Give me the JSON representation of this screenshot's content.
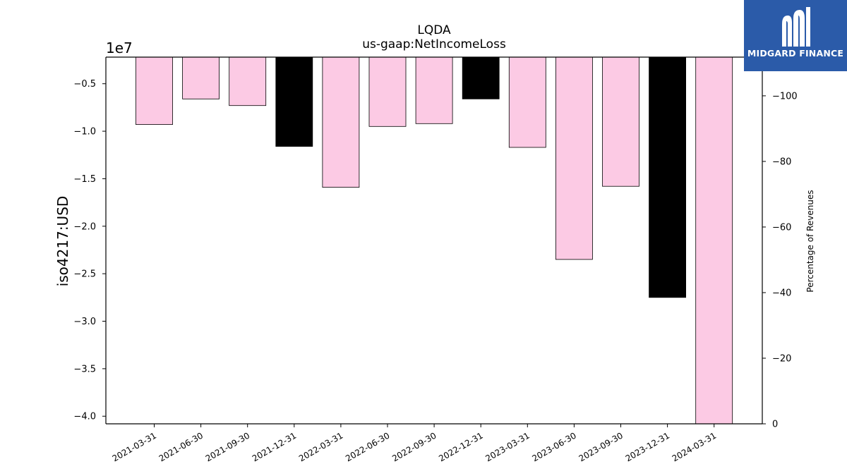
{
  "chart_data": {
    "type": "bar",
    "title": "LQDA",
    "subtitle": "us-gaap:NetIncomeLoss",
    "ylabel": "iso4217:USD",
    "y_offset_label": "1e7",
    "ylabel_right": "Percentage of Revenues",
    "categories": [
      "2021-03-31",
      "2021-06-30",
      "2021-09-30",
      "2021-12-31",
      "2022-03-31",
      "2022-06-30",
      "2022-09-30",
      "2022-12-31",
      "2023-03-31",
      "2023-06-30",
      "2023-09-30",
      "2023-12-31",
      "2024-03-31"
    ],
    "values": [
      -9300000,
      -6600000,
      -7300000,
      -11600000,
      -15900000,
      -9500000,
      -9200000,
      -6600000,
      -11700000,
      -23500000,
      -15800000,
      -27500000,
      -41000000
    ],
    "colors": [
      "#fccae4",
      "#fccae4",
      "#fccae4",
      "#000000",
      "#fccae4",
      "#fccae4",
      "#fccae4",
      "#000000",
      "#fccae4",
      "#fccae4",
      "#fccae4",
      "#000000",
      "#fccae4"
    ],
    "ylim": [
      -2200000,
      -40800000
    ],
    "yticks": [
      -5000000,
      -10000000,
      -15000000,
      -20000000,
      -25000000,
      -30000000,
      -35000000,
      -40000000
    ],
    "ytick_labels": [
      "−0.5",
      "−1.0",
      "−1.5",
      "−2.0",
      "−2.5",
      "−3.0",
      "−3.5",
      "−4.0"
    ],
    "ylim_right": [
      0,
      -111.8
    ],
    "yticks_right": [
      0,
      -20,
      -40,
      -60,
      -80,
      -100
    ],
    "ytick_labels_right": [
      "0",
      "−20",
      "−40",
      "−60",
      "−80",
      "−100"
    ],
    "grid": false,
    "legend": "none"
  },
  "branding": {
    "logo_text": "MIDGARD FINANCE",
    "logo_color": "#2b5ba9"
  }
}
